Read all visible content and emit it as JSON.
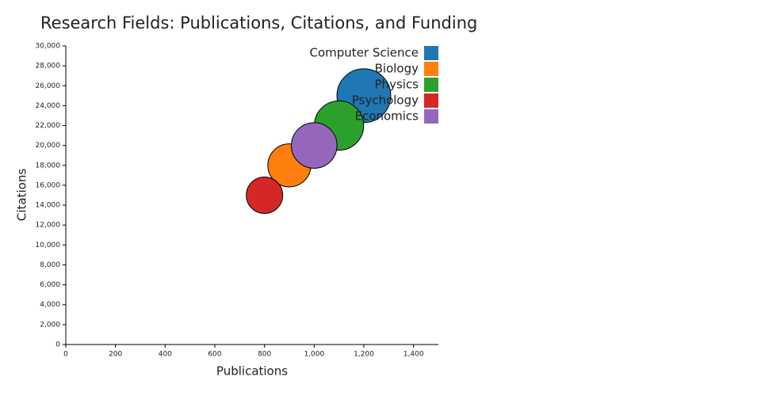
{
  "chart_data": {
    "type": "bubble",
    "title": "Research Fields: Publications, Citations, and Funding",
    "x_label": "Publications",
    "y_label": "Citations",
    "xlim": [
      0,
      1500
    ],
    "xticks": [
      0,
      200,
      400,
      600,
      800,
      {
        "value": 1000,
        "label": "1,000"
      },
      {
        "value": 1200,
        "label": "1,200"
      },
      {
        "value": 1400,
        "label": "1,400"
      }
    ],
    "ylim": [
      0,
      30000
    ],
    "yticks": [
      0,
      {
        "value": 2000,
        "label": "2,000"
      },
      {
        "value": 4000,
        "label": "4,000"
      },
      {
        "value": 6000,
        "label": "6,000"
      },
      {
        "value": 8000,
        "label": "8,000"
      },
      {
        "value": 10000,
        "label": "10,000"
      },
      {
        "value": 12000,
        "label": "12,000"
      },
      {
        "value": 14000,
        "label": "14,000"
      },
      {
        "value": 16000,
        "label": "16,000"
      },
      {
        "value": 18000,
        "label": "18,000"
      },
      {
        "value": 20000,
        "label": "20,000"
      },
      {
        "value": 22000,
        "label": "22,000"
      },
      {
        "value": 24000,
        "label": "24,000"
      },
      {
        "value": 26000,
        "label": "26,000"
      },
      {
        "value": 28000,
        "label": "28,000"
      },
      {
        "value": 30000,
        "label": "30,000"
      }
    ],
    "grid": false,
    "legend": "top-right",
    "series": [
      {
        "name": "Computer Science",
        "color": "#1f77b4",
        "x": [
          1200
        ],
        "values": [
          25000
        ],
        "sizes": [
          50
        ]
      },
      {
        "name": "Biology",
        "color": "#ff7f0e",
        "x": [
          900
        ],
        "values": [
          18000
        ],
        "sizes": [
          32
        ]
      },
      {
        "name": "Physics",
        "color": "#2ca02c",
        "x": [
          1100
        ],
        "values": [
          22000
        ],
        "sizes": [
          42
        ]
      },
      {
        "name": "Psychology",
        "color": "#d62728",
        "x": [
          800
        ],
        "values": [
          15000
        ],
        "sizes": [
          23
        ]
      },
      {
        "name": "Economics",
        "color": "#9467bd",
        "x": [
          1000
        ],
        "values": [
          20000
        ],
        "sizes": [
          36
        ]
      }
    ]
  }
}
